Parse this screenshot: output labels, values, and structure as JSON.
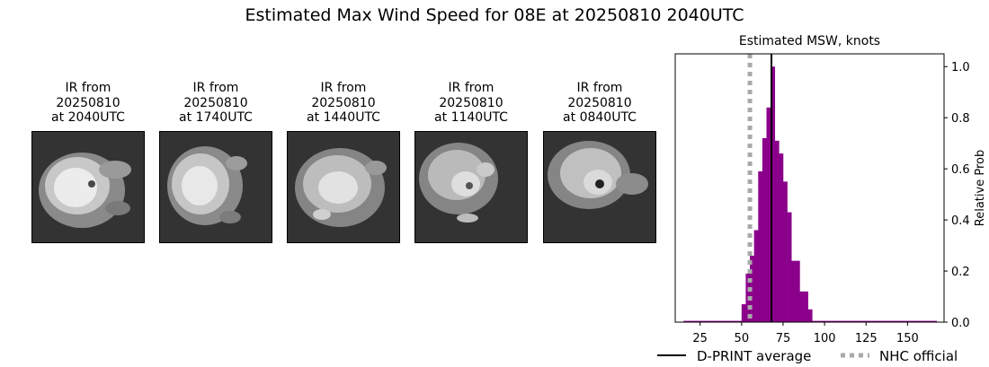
{
  "title": "Estimated Max Wind Speed for 08E at 20250810 2040UTC",
  "ir_panels": [
    {
      "line1": "IR from",
      "line2": "20250810",
      "line3": "at 2040UTC"
    },
    {
      "line1": "IR from",
      "line2": "20250810",
      "line3": "at 1740UTC"
    },
    {
      "line1": "IR from",
      "line2": "20250810",
      "line3": "at 1440UTC"
    },
    {
      "line1": "IR from",
      "line2": "20250810",
      "line3": "at 1140UTC"
    },
    {
      "line1": "IR from",
      "line2": "20250810",
      "line3": "at 0840UTC"
    }
  ],
  "colors": {
    "bars": "#8b008b",
    "dprint_line": "#000000",
    "nhc_line": "#a9a9a9",
    "ir_background": "#333333"
  },
  "chart_data": {
    "type": "bar",
    "title": "Estimated MSW, knots",
    "xlabel": "",
    "ylabel": "Relative Prob",
    "xlim": [
      10,
      172
    ],
    "ylim": [
      0,
      1.05
    ],
    "xticks": [
      25,
      50,
      75,
      100,
      125,
      150
    ],
    "yticks": [
      0.0,
      0.2,
      0.4,
      0.6,
      0.8,
      1.0
    ],
    "y_axis_side": "right",
    "bin_width": 2.5,
    "bins": [
      {
        "x": 15,
        "value": 0.005
      },
      {
        "x": 17.5,
        "value": 0.005
      },
      {
        "x": 20,
        "value": 0.005
      },
      {
        "x": 22.5,
        "value": 0.005
      },
      {
        "x": 25,
        "value": 0.005
      },
      {
        "x": 27.5,
        "value": 0.005
      },
      {
        "x": 30,
        "value": 0.005
      },
      {
        "x": 32.5,
        "value": 0.005
      },
      {
        "x": 35,
        "value": 0.005
      },
      {
        "x": 37.5,
        "value": 0.005
      },
      {
        "x": 40,
        "value": 0.005
      },
      {
        "x": 42.5,
        "value": 0.005
      },
      {
        "x": 45,
        "value": 0.005
      },
      {
        "x": 47.5,
        "value": 0.005
      },
      {
        "x": 50,
        "value": 0.07
      },
      {
        "x": 52.5,
        "value": 0.19
      },
      {
        "x": 55,
        "value": 0.26
      },
      {
        "x": 57.5,
        "value": 0.36
      },
      {
        "x": 60,
        "value": 0.59
      },
      {
        "x": 62.5,
        "value": 0.72
      },
      {
        "x": 65,
        "value": 0.84
      },
      {
        "x": 67.5,
        "value": 1.0
      },
      {
        "x": 70,
        "value": 0.71
      },
      {
        "x": 72.5,
        "value": 0.66
      },
      {
        "x": 75,
        "value": 0.55
      },
      {
        "x": 77.5,
        "value": 0.43
      },
      {
        "x": 80,
        "value": 0.24
      },
      {
        "x": 82.5,
        "value": 0.24
      },
      {
        "x": 85,
        "value": 0.12
      },
      {
        "x": 87.5,
        "value": 0.12
      },
      {
        "x": 90,
        "value": 0.05
      },
      {
        "x": 92.5,
        "value": 0.005
      },
      {
        "x": 95,
        "value": 0.005
      },
      {
        "x": 97.5,
        "value": 0.005
      },
      {
        "x": 100,
        "value": 0.005
      },
      {
        "x": 102.5,
        "value": 0.005
      },
      {
        "x": 105,
        "value": 0.005
      },
      {
        "x": 107.5,
        "value": 0.005
      },
      {
        "x": 110,
        "value": 0.005
      },
      {
        "x": 112.5,
        "value": 0.005
      },
      {
        "x": 115,
        "value": 0.005
      },
      {
        "x": 117.5,
        "value": 0.005
      },
      {
        "x": 120,
        "value": 0.005
      },
      {
        "x": 122.5,
        "value": 0.005
      },
      {
        "x": 125,
        "value": 0.005
      },
      {
        "x": 127.5,
        "value": 0.005
      },
      {
        "x": 130,
        "value": 0.005
      },
      {
        "x": 132.5,
        "value": 0.005
      },
      {
        "x": 135,
        "value": 0.005
      },
      {
        "x": 137.5,
        "value": 0.005
      },
      {
        "x": 140,
        "value": 0.005
      },
      {
        "x": 142.5,
        "value": 0.005
      },
      {
        "x": 145,
        "value": 0.005
      },
      {
        "x": 147.5,
        "value": 0.005
      },
      {
        "x": 150,
        "value": 0.005
      },
      {
        "x": 152.5,
        "value": 0.005
      },
      {
        "x": 155,
        "value": 0.005
      },
      {
        "x": 157.5,
        "value": 0.005
      },
      {
        "x": 160,
        "value": 0.005
      },
      {
        "x": 162.5,
        "value": 0.005
      },
      {
        "x": 165,
        "value": 0.005
      }
    ],
    "dprint_average": 68,
    "nhc_official": 55,
    "legend": [
      "D-PRINT average",
      "NHC official"
    ],
    "legend_placement": "bottom"
  }
}
